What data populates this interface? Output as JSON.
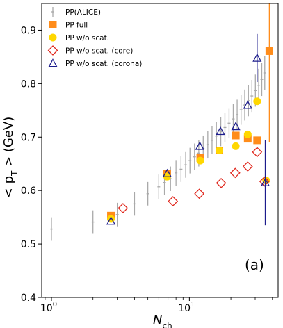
{
  "chart_data": {
    "type": "scatter",
    "xscale": "log",
    "xlim": [
      0.85,
      44
    ],
    "ylim": [
      0.4,
      0.95
    ],
    "xlabel": "N",
    "xlabel_sub": "ch",
    "ylabel_parts": [
      "< p",
      "T",
      " > (GeV)"
    ],
    "x_ticks": [
      {
        "value": 1,
        "base": "10",
        "exp": "0"
      },
      {
        "value": 10,
        "base": "10",
        "exp": "1"
      }
    ],
    "y_ticks": [
      {
        "value": 0.4,
        "label": "0.4"
      },
      {
        "value": 0.5,
        "label": "0.5"
      },
      {
        "value": 0.6,
        "label": "0.6"
      },
      {
        "value": 0.7,
        "label": "0.7"
      },
      {
        "value": 0.8,
        "label": "0.8"
      },
      {
        "value": 0.9,
        "label": "0.9"
      }
    ],
    "panel_label": "(a)",
    "legend_position": "top-left",
    "series": [
      {
        "name": "PP(ALICE)",
        "marker": "errorbar",
        "color": "#a9a9a9",
        "points": [
          {
            "x": 1.0,
            "y": 0.528,
            "err": 0.022
          },
          {
            "x": 2.0,
            "y": 0.541,
            "err": 0.022
          },
          {
            "x": 3.0,
            "y": 0.555,
            "err": 0.022
          },
          {
            "x": 4.0,
            "y": 0.575,
            "err": 0.022
          },
          {
            "x": 5.0,
            "y": 0.594,
            "err": 0.022
          },
          {
            "x": 6.0,
            "y": 0.607,
            "err": 0.023
          },
          {
            "x": 6.6,
            "y": 0.615,
            "err": 0.023
          },
          {
            "x": 7.3,
            "y": 0.622,
            "err": 0.023
          },
          {
            "x": 8.0,
            "y": 0.633,
            "err": 0.024
          },
          {
            "x": 8.7,
            "y": 0.64,
            "err": 0.024
          },
          {
            "x": 9.4,
            "y": 0.648,
            "err": 0.024
          },
          {
            "x": 10.1,
            "y": 0.656,
            "err": 0.024
          },
          {
            "x": 10.9,
            "y": 0.663,
            "err": 0.025
          },
          {
            "x": 11.7,
            "y": 0.67,
            "err": 0.025
          },
          {
            "x": 12.6,
            "y": 0.678,
            "err": 0.025
          },
          {
            "x": 13.6,
            "y": 0.686,
            "err": 0.026
          },
          {
            "x": 14.6,
            "y": 0.694,
            "err": 0.026
          },
          {
            "x": 15.7,
            "y": 0.702,
            "err": 0.026
          },
          {
            "x": 16.9,
            "y": 0.71,
            "err": 0.027
          },
          {
            "x": 18.1,
            "y": 0.718,
            "err": 0.027
          },
          {
            "x": 19.4,
            "y": 0.726,
            "err": 0.027
          },
          {
            "x": 20.8,
            "y": 0.734,
            "err": 0.028
          },
          {
            "x": 22.2,
            "y": 0.742,
            "err": 0.028
          },
          {
            "x": 23.7,
            "y": 0.751,
            "err": 0.028
          },
          {
            "x": 25.2,
            "y": 0.76,
            "err": 0.029
          },
          {
            "x": 26.8,
            "y": 0.768,
            "err": 0.029
          },
          {
            "x": 28.4,
            "y": 0.777,
            "err": 0.03
          },
          {
            "x": 30.1,
            "y": 0.787,
            "err": 0.03
          },
          {
            "x": 31.8,
            "y": 0.797,
            "err": 0.031
          },
          {
            "x": 33.5,
            "y": 0.808,
            "err": 0.031
          },
          {
            "x": 35.2,
            "y": 0.82,
            "err": 0.032
          }
        ]
      },
      {
        "name": "PP full",
        "marker": "square",
        "color": "#ff8c1a",
        "points": [
          {
            "x": 2.7,
            "y": 0.553
          },
          {
            "x": 6.9,
            "y": 0.632
          },
          {
            "x": 12.0,
            "y": 0.661
          },
          {
            "x": 16.5,
            "y": 0.675
          },
          {
            "x": 21.7,
            "y": 0.703
          },
          {
            "x": 26.5,
            "y": 0.697
          },
          {
            "x": 31.0,
            "y": 0.694
          },
          {
            "x": 38.0,
            "y": 0.861,
            "err": 0.17
          }
        ]
      },
      {
        "name": "PP w/o scat.",
        "marker": "circle",
        "color": "#ffd700",
        "points": [
          {
            "x": 2.7,
            "y": 0.547
          },
          {
            "x": 6.9,
            "y": 0.626
          },
          {
            "x": 12.0,
            "y": 0.656
          },
          {
            "x": 16.5,
            "y": 0.675
          },
          {
            "x": 21.7,
            "y": 0.683
          },
          {
            "x": 26.5,
            "y": 0.705
          },
          {
            "x": 31.0,
            "y": 0.767
          },
          {
            "x": 36.0,
            "y": 0.619
          }
        ]
      },
      {
        "name": "PP w/o scat. (core)",
        "marker": "diamond",
        "color": "#e0281e",
        "points": [
          {
            "x": 3.3,
            "y": 0.567
          },
          {
            "x": 7.6,
            "y": 0.58
          },
          {
            "x": 11.8,
            "y": 0.594
          },
          {
            "x": 17.0,
            "y": 0.614
          },
          {
            "x": 21.5,
            "y": 0.633
          },
          {
            "x": 26.5,
            "y": 0.645
          },
          {
            "x": 31.0,
            "y": 0.672
          },
          {
            "x": 35.0,
            "y": 0.617
          }
        ]
      },
      {
        "name": "PP w/o scat. (corona)",
        "marker": "triangle",
        "color": "#1c1c8c",
        "points": [
          {
            "x": 2.7,
            "y": 0.543
          },
          {
            "x": 6.9,
            "y": 0.632
          },
          {
            "x": 11.9,
            "y": 0.683
          },
          {
            "x": 16.8,
            "y": 0.711
          },
          {
            "x": 21.7,
            "y": 0.72
          },
          {
            "x": 26.5,
            "y": 0.76
          },
          {
            "x": 31.0,
            "y": 0.848,
            "err": 0.045
          },
          {
            "x": 35.5,
            "y": 0.615,
            "err": 0.08
          }
        ]
      }
    ]
  }
}
